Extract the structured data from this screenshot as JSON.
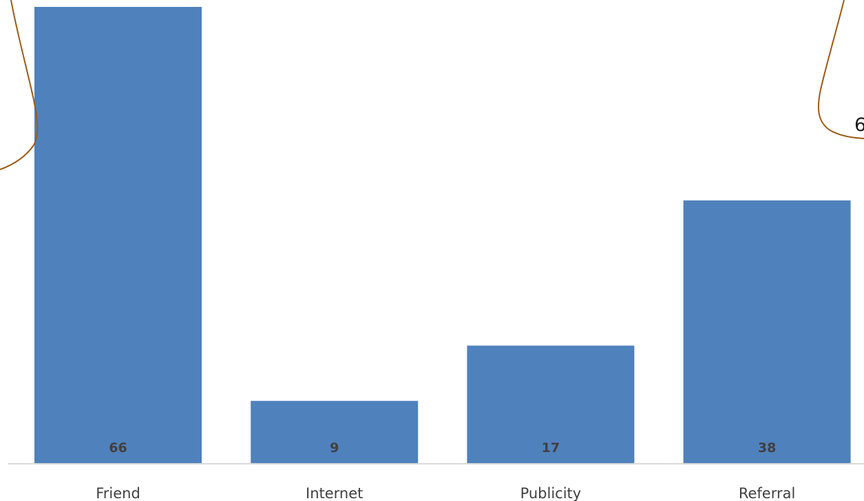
{
  "chart_data": {
    "type": "bar",
    "categories": [
      "Friend",
      "Internet",
      "Publicity",
      "Referral"
    ],
    "values": [
      66,
      9,
      17,
      38
    ],
    "title": "",
    "xlabel": "",
    "ylabel": "",
    "ylim": [
      0,
      66
    ],
    "grid": false,
    "legend": "none",
    "bar_color": "#4f81bd",
    "label_color": "#404040",
    "axis_color": "#d9d9d9",
    "callout_color": "#9c5b15",
    "callouts": [
      {
        "text": ""
      },
      {
        "text": "6"
      }
    ]
  }
}
